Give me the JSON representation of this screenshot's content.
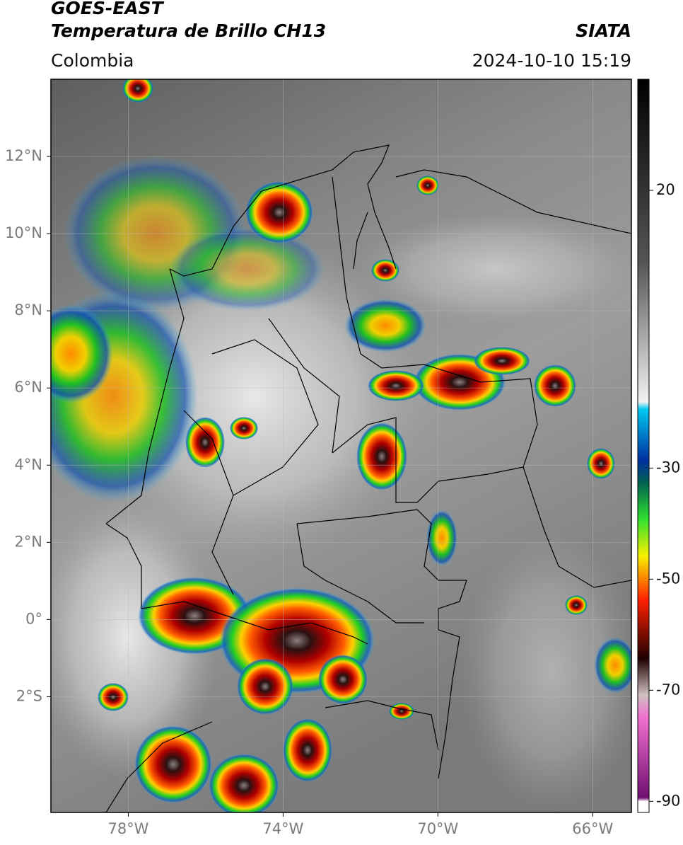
{
  "header": {
    "title": "GOES-EAST",
    "subtitle": "Temperatura de Brillo CH13",
    "region": "Colombia",
    "source": "SIATA",
    "datetime": "2024-10-10 15:19"
  },
  "map": {
    "lonlim": [
      -80,
      -65
    ],
    "latlim": [
      -5,
      14
    ],
    "lon_ticks": [
      {
        "value": -78,
        "label": "78°W"
      },
      {
        "value": -74,
        "label": "74°W"
      },
      {
        "value": -70,
        "label": "70°W"
      },
      {
        "value": -66,
        "label": "66°W"
      }
    ],
    "lat_ticks": [
      {
        "value": 12,
        "label": "12°N"
      },
      {
        "value": 10,
        "label": "10°N"
      },
      {
        "value": 8,
        "label": "8°N"
      },
      {
        "value": 6,
        "label": "6°N"
      },
      {
        "value": 4,
        "label": "4°N"
      },
      {
        "value": 2,
        "label": "2°N"
      },
      {
        "value": 0,
        "label": "0°"
      },
      {
        "value": -2,
        "label": "2°S"
      }
    ]
  },
  "colorbar": {
    "lim": [
      -92,
      40
    ],
    "ticks": [
      20,
      -30,
      -50,
      -70,
      -90
    ]
  }
}
